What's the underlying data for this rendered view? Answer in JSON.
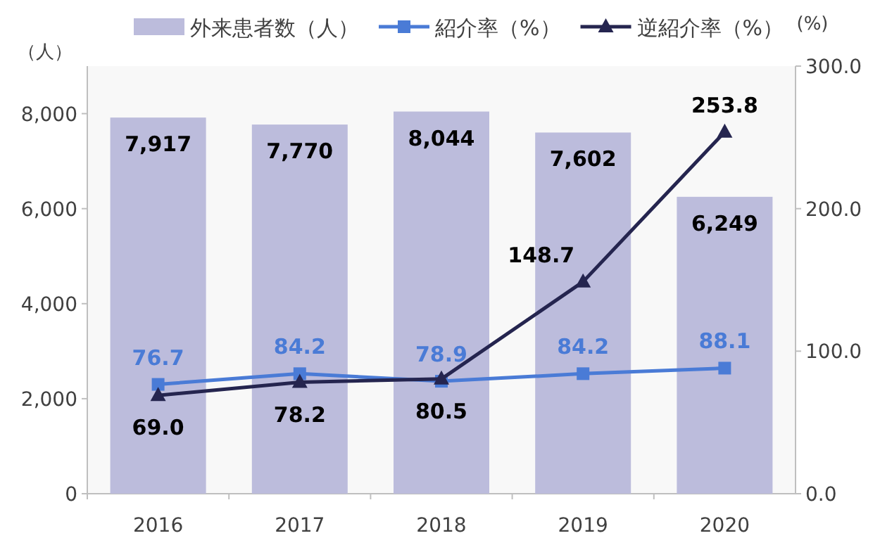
{
  "chart_data": {
    "type": "bar",
    "categories": [
      "2016",
      "2017",
      "2018",
      "2019",
      "2020"
    ],
    "ylabel": "（人）",
    "y2label": "(%)",
    "ylim": [
      0,
      9000
    ],
    "yticks": [
      0,
      {
        "value": 2000,
        "label": "2,000"
      },
      {
        "value": 4000,
        "label": "4,000"
      },
      {
        "value": 6000,
        "label": "6,000"
      },
      {
        "value": 8000,
        "label": "8,000"
      }
    ],
    "y2lim": [
      0,
      300
    ],
    "y2ticks": [
      {
        "value": 0,
        "label": "0.0"
      },
      {
        "value": 100,
        "label": "100.0"
      },
      {
        "value": 200,
        "label": "200.0"
      },
      {
        "value": 300,
        "label": "300.0"
      }
    ],
    "grid": false,
    "legend": "top",
    "series": [
      {
        "name": "外来患者数（人）",
        "color": "#bcbcdc",
        "values": [
          7917,
          7770,
          8044,
          7602,
          6249
        ],
        "value_labels": [
          "7,917",
          "7,770",
          "8,044",
          "7,602",
          "6,249"
        ]
      },
      {
        "name": "紹介率（%）",
        "type": "line",
        "axis": "y2",
        "color": "#4a7bd6",
        "marker": "square",
        "values": [
          76.7,
          84.2,
          78.9,
          84.2,
          88.1
        ],
        "value_labels": [
          "76.7",
          "84.2",
          "78.9",
          "84.2",
          "88.1"
        ]
      },
      {
        "name": "逆紹介率（%）",
        "type": "line",
        "axis": "y2",
        "color": "#25254f",
        "marker": "triangle",
        "values": [
          69.0,
          78.2,
          80.5,
          148.7,
          253.8
        ],
        "value_labels": [
          "69.0",
          "78.2",
          "80.5",
          "148.7",
          "253.8"
        ]
      }
    ]
  }
}
